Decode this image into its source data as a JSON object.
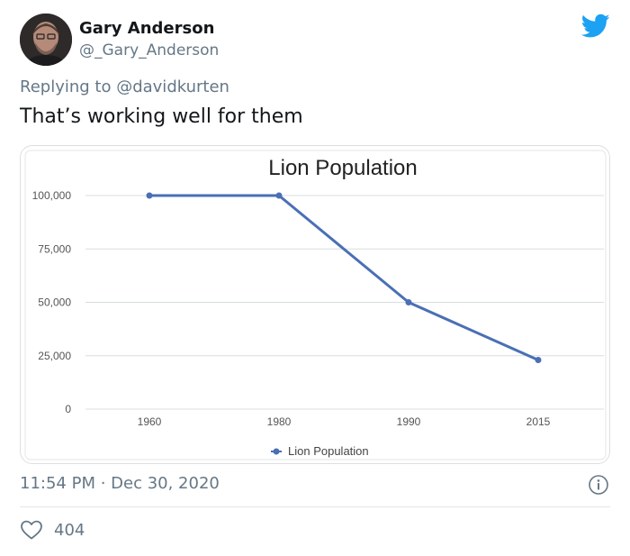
{
  "author": {
    "display_name": "Gary Anderson",
    "handle": "@_Gary_Anderson"
  },
  "reply": {
    "prefix": "Replying to ",
    "mention": "@davidkurten"
  },
  "tweet": {
    "text": "That’s working well for them",
    "timestamp": "11:54 PM · Dec 30, 2020",
    "like_count": "404"
  },
  "icons": {
    "brand": "twitter-bird-icon",
    "info": "info-icon",
    "like": "heart-icon"
  },
  "colors": {
    "twitter_blue": "#1da1f2",
    "muted_text": "#657786",
    "series_line": "#4a6fb5"
  },
  "chart_data": {
    "type": "line",
    "title": "Lion Population",
    "xlabel": "",
    "ylabel": "",
    "categories": [
      "1960",
      "1980",
      "1990",
      "2015"
    ],
    "series": [
      {
        "name": "Lion Population",
        "values": [
          100000,
          100000,
          50000,
          23000
        ]
      }
    ],
    "ylim": [
      0,
      100000
    ],
    "yticks": [
      0,
      25000,
      50000,
      75000,
      100000
    ],
    "ytick_labels": [
      "0",
      "25,000",
      "50,000",
      "75,000",
      "100,000"
    ],
    "grid": true,
    "legend": "bottom-center"
  }
}
